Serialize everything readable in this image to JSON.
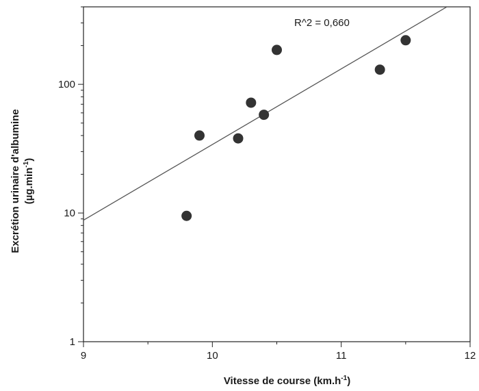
{
  "chart_data": {
    "type": "scatter",
    "title": "",
    "xlabel": "Vitesse de course (km.h",
    "xlabel_sup": "-1",
    "xlabel_end": ")",
    "ylabel_line1": "Excrétion urinaire d'albumine",
    "ylabel_line2": "(µg.min",
    "ylabel_line2_sup": "-1",
    "ylabel_line2_end": ")",
    "xlim": [
      9,
      12
    ],
    "ylim": [
      1,
      400
    ],
    "yscale": "log",
    "x_ticks": [
      9,
      10,
      11,
      12
    ],
    "x_tick_labels": [
      "9",
      "10",
      "11",
      "12"
    ],
    "y_ticks": [
      1,
      10,
      100
    ],
    "y_tick_labels": [
      "1",
      "10",
      "100"
    ],
    "grid": false,
    "points": [
      {
        "x": 9.8,
        "y": 9.5
      },
      {
        "x": 9.9,
        "y": 40
      },
      {
        "x": 10.2,
        "y": 38
      },
      {
        "x": 10.3,
        "y": 72
      },
      {
        "x": 10.4,
        "y": 58
      },
      {
        "x": 10.5,
        "y": 185
      },
      {
        "x": 11.3,
        "y": 130
      },
      {
        "x": 11.5,
        "y": 220
      }
    ],
    "trendline": {
      "x": [
        9,
        11.82
      ],
      "y": [
        8.8,
        400
      ]
    },
    "annotation": "R^2 = 0,660",
    "marker_color": "#333333",
    "line_color": "#555555"
  }
}
